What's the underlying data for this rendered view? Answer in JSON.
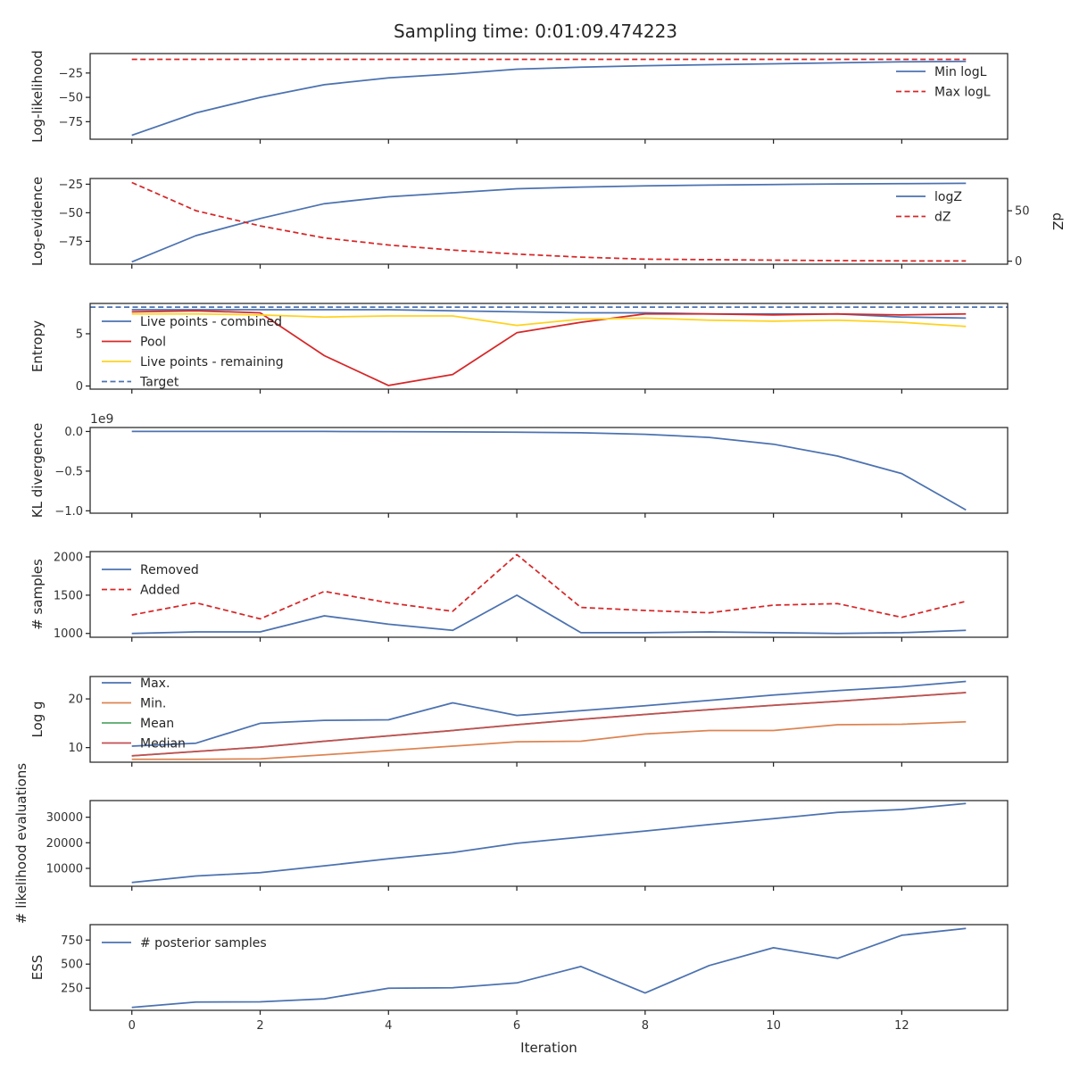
{
  "figure": {
    "title": "Sampling time: 0:01:09.474223",
    "xlabel": "Iteration"
  },
  "colors": {
    "blue": "#4c72b0",
    "red": "#d62728",
    "yellow": "#ffd21f",
    "orange": "#dd8452",
    "green": "#55a868",
    "brown": "#c44e52"
  },
  "chart_data": [
    {
      "type": "line",
      "ylabel": "Log-likelihood",
      "xlim": [
        -0.65,
        13.65
      ],
      "ylim": [
        -93,
        -5
      ],
      "yticks": [
        -75,
        -50,
        -25
      ],
      "yticklabels": [
        "−75",
        "−50",
        "−25"
      ],
      "legend": "right",
      "series": [
        {
          "name": "Min logL",
          "color": "#4c72b0",
          "dash": false,
          "x": [
            0,
            1,
            2,
            3,
            4,
            5,
            6,
            7,
            8,
            9,
            10,
            11,
            12,
            13
          ],
          "y": [
            -89,
            -66,
            -50,
            -37,
            -30,
            -26,
            -21,
            -19,
            -17.5,
            -16.5,
            -15.5,
            -14.5,
            -13.5,
            -13
          ]
        },
        {
          "name": "Max logL",
          "color": "#d62728",
          "dash": true,
          "x": [
            0,
            1,
            2,
            3,
            4,
            5,
            6,
            7,
            8,
            9,
            10,
            11,
            12,
            13
          ],
          "y": [
            -11,
            -11,
            -11,
            -11,
            -11,
            -11,
            -11,
            -11,
            -11,
            -11,
            -11,
            -11,
            -11,
            -11
          ]
        }
      ]
    },
    {
      "type": "line",
      "ylabel": "Log-evidence",
      "ylabel_right": "dZ",
      "xlim": [
        -0.65,
        13.65
      ],
      "ylim": [
        -95,
        -20
      ],
      "yticks": [
        -75,
        -50,
        -25
      ],
      "yticklabels": [
        "−75",
        "−50",
        "−25"
      ],
      "ylim_right": [
        -3,
        82
      ],
      "yticks_right": [
        0,
        50
      ],
      "yticklabels_right": [
        "0",
        "50"
      ],
      "legend": "right",
      "series": [
        {
          "name": "logZ",
          "color": "#4c72b0",
          "dash": false,
          "axis": "left",
          "x": [
            0,
            1,
            2,
            3,
            4,
            5,
            6,
            7,
            8,
            9,
            10,
            11,
            12,
            13
          ],
          "y": [
            -93,
            -70,
            -55,
            -42,
            -36,
            -32.5,
            -29,
            -27.5,
            -26.5,
            -25.8,
            -25.2,
            -24.8,
            -24.5,
            -24.2
          ]
        },
        {
          "name": "dZ",
          "color": "#d62728",
          "dash": true,
          "axis": "right",
          "x": [
            0,
            1,
            2,
            3,
            4,
            5,
            6,
            7,
            8,
            9,
            10,
            11,
            12,
            13
          ],
          "y": [
            78,
            50,
            35,
            23,
            16,
            11,
            7,
            4,
            2,
            1.5,
            1,
            0.5,
            0.3,
            0.2
          ]
        }
      ]
    },
    {
      "type": "line",
      "ylabel": "Entropy",
      "xlim": [
        -0.65,
        13.65
      ],
      "ylim": [
        -0.3,
        7.9
      ],
      "yticks": [
        0,
        5
      ],
      "yticklabels": [
        "0",
        "5"
      ],
      "legend": "left",
      "series": [
        {
          "name": "Live points - combined",
          "color": "#4c72b0",
          "dash": false,
          "x": [
            0,
            1,
            2,
            3,
            4,
            5,
            6,
            7,
            8,
            9,
            10,
            11,
            12,
            13
          ],
          "y": [
            7.3,
            7.3,
            7.3,
            7.3,
            7.3,
            7.2,
            7.1,
            7.0,
            7.0,
            6.9,
            6.9,
            6.9,
            6.6,
            6.5
          ]
        },
        {
          "name": "Pool",
          "color": "#d62728",
          "dash": false,
          "x": [
            0,
            1,
            2,
            3,
            4,
            5,
            6,
            7,
            8,
            9,
            10,
            11,
            12,
            13
          ],
          "y": [
            7.1,
            7.2,
            7.0,
            2.9,
            0.05,
            1.1,
            5.1,
            6.1,
            6.9,
            6.9,
            6.8,
            6.9,
            6.8,
            6.9
          ]
        },
        {
          "name": "Live points - remaining",
          "color": "#ffd21f",
          "dash": false,
          "x": [
            0,
            1,
            2,
            3,
            4,
            5,
            6,
            7,
            8,
            9,
            10,
            11,
            12,
            13
          ],
          "y": [
            6.9,
            6.9,
            6.8,
            6.6,
            6.7,
            6.7,
            5.8,
            6.4,
            6.5,
            6.3,
            6.2,
            6.3,
            6.1,
            5.7
          ]
        },
        {
          "name": "Target",
          "color": "#4c72b0",
          "dash": true,
          "x": [
            -0.65,
            13.65
          ],
          "y": [
            7.55,
            7.55
          ]
        }
      ]
    },
    {
      "type": "line",
      "ylabel": "KL divergence",
      "offset_text": "1e9",
      "xlim": [
        -0.65,
        13.65
      ],
      "ylim": [
        -1.03,
        0.05
      ],
      "yticks": [
        -1.0,
        -0.5,
        0.0
      ],
      "yticklabels": [
        "−1.0",
        "−0.5",
        "0.0"
      ],
      "series": [
        {
          "name": "",
          "color": "#4c72b0",
          "dash": false,
          "x": [
            0,
            1,
            2,
            3,
            4,
            5,
            6,
            7,
            8,
            9,
            10,
            11,
            12,
            13
          ],
          "y": [
            0,
            0,
            0,
            0,
            -0.002,
            -0.005,
            -0.01,
            -0.016,
            -0.035,
            -0.075,
            -0.16,
            -0.31,
            -0.53,
            -0.99
          ]
        }
      ]
    },
    {
      "type": "line",
      "ylabel": "# samples",
      "xlim": [
        -0.65,
        13.65
      ],
      "ylim": [
        950,
        2070
      ],
      "yticks": [
        1000,
        1500,
        2000
      ],
      "yticklabels": [
        "1000",
        "1500",
        "2000"
      ],
      "legend": "left",
      "series": [
        {
          "name": "Removed",
          "color": "#4c72b0",
          "dash": false,
          "x": [
            0,
            1,
            2,
            3,
            4,
            5,
            6,
            7,
            8,
            9,
            10,
            11,
            12,
            13
          ],
          "y": [
            1000,
            1020,
            1020,
            1230,
            1120,
            1040,
            1500,
            1010,
            1010,
            1020,
            1010,
            1000,
            1010,
            1040
          ]
        },
        {
          "name": "Added",
          "color": "#d62728",
          "dash": true,
          "x": [
            0,
            1,
            2,
            3,
            4,
            5,
            6,
            7,
            8,
            9,
            10,
            11,
            12,
            13
          ],
          "y": [
            1240,
            1400,
            1190,
            1550,
            1400,
            1290,
            2030,
            1340,
            1300,
            1270,
            1370,
            1390,
            1210,
            1420
          ]
        }
      ]
    },
    {
      "type": "line",
      "ylabel": "Log g",
      "xlim": [
        -0.65,
        13.65
      ],
      "ylim": [
        7,
        24.6
      ],
      "yticks": [
        10,
        20
      ],
      "yticklabels": [
        "10",
        "20"
      ],
      "legend": "left",
      "series": [
        {
          "name": "Max.",
          "color": "#4c72b0",
          "dash": false,
          "x": [
            0,
            1,
            2,
            3,
            4,
            5,
            6,
            7,
            8,
            9,
            10,
            11,
            12,
            13
          ],
          "y": [
            10.3,
            10.9,
            15.0,
            15.6,
            15.7,
            19.2,
            16.6,
            17.6,
            18.6,
            19.7,
            20.8,
            21.7,
            22.5,
            23.6
          ]
        },
        {
          "name": "Min.",
          "color": "#dd8452",
          "dash": false,
          "x": [
            0,
            1,
            2,
            3,
            4,
            5,
            6,
            7,
            8,
            9,
            10,
            11,
            12,
            13
          ],
          "y": [
            7.6,
            7.6,
            7.7,
            8.5,
            9.4,
            10.3,
            11.2,
            11.3,
            12.8,
            13.5,
            13.5,
            14.7,
            14.8,
            15.3
          ]
        },
        {
          "name": "Mean",
          "color": "#55a868",
          "dash": false,
          "x": [
            0,
            1,
            2,
            3,
            4,
            5,
            6,
            7,
            8,
            9,
            10,
            11,
            12,
            13
          ],
          "y": [
            8.3,
            9.2,
            10.1,
            11.3,
            12.4,
            13.5,
            14.7,
            15.8,
            16.8,
            17.8,
            18.7,
            19.5,
            20.4,
            21.3
          ]
        },
        {
          "name": "Median",
          "color": "#c44e52",
          "dash": false,
          "x": [
            0,
            1,
            2,
            3,
            4,
            5,
            6,
            7,
            8,
            9,
            10,
            11,
            12,
            13
          ],
          "y": [
            8.3,
            9.2,
            10.1,
            11.3,
            12.4,
            13.5,
            14.7,
            15.8,
            16.8,
            17.8,
            18.7,
            19.5,
            20.4,
            21.3
          ]
        }
      ]
    },
    {
      "type": "line",
      "ylabel": "# likelihood evaluations",
      "xlim": [
        -0.65,
        13.65
      ],
      "ylim": [
        3000,
        36500
      ],
      "yticks": [
        10000,
        20000,
        30000
      ],
      "yticklabels": [
        "10000",
        "20000",
        "30000"
      ],
      "series": [
        {
          "name": "",
          "color": "#4c72b0",
          "dash": false,
          "x": [
            0,
            1,
            2,
            3,
            4,
            5,
            6,
            7,
            8,
            9,
            10,
            11,
            12,
            13
          ],
          "y": [
            4500,
            7000,
            8300,
            11000,
            13700,
            16200,
            19800,
            22200,
            24600,
            27100,
            29400,
            31900,
            33000,
            35400
          ]
        }
      ]
    },
    {
      "type": "line",
      "ylabel": "ESS",
      "xlim": [
        -0.65,
        13.65
      ],
      "ylim": [
        20,
        910
      ],
      "yticks": [
        250,
        500,
        750
      ],
      "yticklabels": [
        "250",
        "500",
        "750"
      ],
      "legend": "left",
      "series": [
        {
          "name": "# posterior samples",
          "color": "#4c72b0",
          "dash": false,
          "x": [
            0,
            1,
            2,
            3,
            4,
            5,
            6,
            7,
            8,
            9,
            10,
            11,
            12,
            13
          ],
          "y": [
            50,
            105,
            108,
            140,
            250,
            255,
            305,
            475,
            200,
            485,
            670,
            560,
            800,
            870
          ]
        }
      ]
    }
  ],
  "xticks": [
    0,
    2,
    4,
    6,
    8,
    10,
    12
  ],
  "xticklabels": [
    "0",
    "2",
    "4",
    "6",
    "8",
    "10",
    "12"
  ]
}
